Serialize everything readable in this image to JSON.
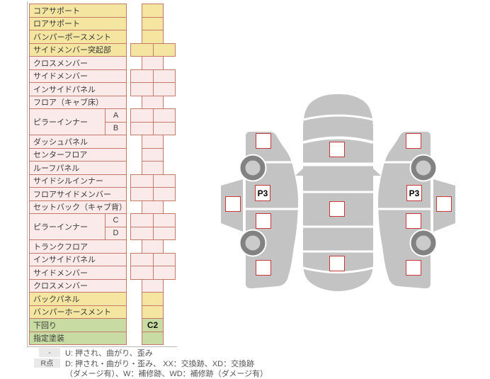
{
  "parts_table": {
    "rows": [
      {
        "label": "コアサポート",
        "tone": "yellow",
        "cells": 1
      },
      {
        "label": "ロアサポート",
        "tone": "yellow",
        "cells": 1
      },
      {
        "label": "バンパーポースメント",
        "tone": "yellow",
        "cells": 1
      },
      {
        "label": "サイドメンバー突起部",
        "tone": "yellow",
        "cells": 2
      },
      {
        "label": "クロスメンバー",
        "tone": "pink",
        "cells": 1
      },
      {
        "label": "サイドメンバー",
        "tone": "pink",
        "cells": 2
      },
      {
        "label": "インサイドパネル",
        "tone": "pink",
        "cells": 2
      },
      {
        "label": "フロア（キャブ床）",
        "tone": "pink",
        "cells": 1
      },
      {
        "label": "ピラーインナー",
        "tone": "pink",
        "cells": 2,
        "sub": "A",
        "label_span": 2
      },
      {
        "label": null,
        "tone": "pink",
        "cells": 2,
        "sub": "B"
      },
      {
        "label": "ダッシュパネル",
        "tone": "pink",
        "cells": 1
      },
      {
        "label": "センターフロア",
        "tone": "pink",
        "cells": 1
      },
      {
        "label": "ルーフパネル",
        "tone": "pink",
        "cells": 1
      },
      {
        "label": "サイドシルインナー",
        "tone": "pink",
        "cells": 2
      },
      {
        "label": "フロアサイドメンバー",
        "tone": "pink",
        "cells": 2
      },
      {
        "label": "セットバック（キャブ背）",
        "tone": "pink",
        "cells": 1
      },
      {
        "label": "ピラーインナー",
        "tone": "pink",
        "cells": 2,
        "sub": "C",
        "label_span": 2
      },
      {
        "label": null,
        "tone": "pink",
        "cells": 2,
        "sub": "D"
      },
      {
        "label": "トランクフロア",
        "tone": "pink",
        "cells": 1
      },
      {
        "label": "インサイドパネル",
        "tone": "pink",
        "cells": 2
      },
      {
        "label": "サイドメンバー",
        "tone": "pink",
        "cells": 2
      },
      {
        "label": "クロスメンバー",
        "tone": "pink",
        "cells": 1
      },
      {
        "label": "バックパネル",
        "tone": "yellow",
        "cells": 1
      },
      {
        "label": "バンパーホースメント",
        "tone": "yellow",
        "cells": 1
      },
      {
        "label": "下回り",
        "tone": "green",
        "cells": 1,
        "value": "C2"
      },
      {
        "label": "指定塗装",
        "tone": "green",
        "cells": 1
      }
    ]
  },
  "diagram": {
    "pillar_left_code": "P3",
    "pillar_right_code": "P3"
  },
  "legend": {
    "key1": "-",
    "line1": "U: 押され、曲がり、歪み",
    "key2": "R点",
    "line2": "D: 押され・曲がり・歪み、 XX：交換跡、XD：交換跡",
    "line3": "（ダメージ有）、W：補修跡、WD：補修跡（ダメージ有）"
  },
  "colors": {
    "row_yellow": "#f4e6a1",
    "row_pink": "#fbeaea",
    "row_green": "#c8dba2",
    "grid_border": "#c5796b",
    "marker_border": "#c53b3b",
    "body_gray": "#c3c3c3",
    "wheel_ring": "#828282",
    "wheel_hub": "#cbcbcb"
  }
}
